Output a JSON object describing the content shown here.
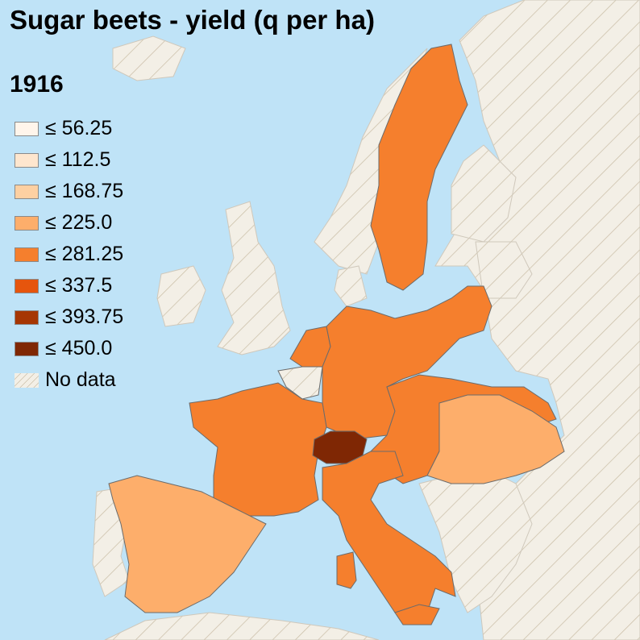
{
  "title": "Sugar beets - yield (q per ha)",
  "year": "1916",
  "colors": {
    "sea": "#bfe3f7",
    "nodata_base": "#f3efe6",
    "nodata_hatch": "#cbbfa8",
    "border": "#6b6b6b"
  },
  "legend": [
    {
      "label": "≤ 56.25",
      "color": "#fff5eb"
    },
    {
      "label": "≤ 112.5",
      "color": "#fee6ce"
    },
    {
      "label": "≤ 168.75",
      "color": "#fdd0a2"
    },
    {
      "label": "≤ 225.0",
      "color": "#fdae6b"
    },
    {
      "label": "≤ 281.25",
      "color": "#f57f2d"
    },
    {
      "label": "≤ 337.5",
      "color": "#e6550d"
    },
    {
      "label": "≤ 393.75",
      "color": "#a63603"
    },
    {
      "label": "≤ 450.0",
      "color": "#7f2704"
    }
  ],
  "no_data_label": "No data",
  "regions": [
    {
      "name": "sweden",
      "class": 4
    },
    {
      "name": "germany",
      "class": 4
    },
    {
      "name": "netherlands",
      "class": 4
    },
    {
      "name": "belgium",
      "class": "nodata"
    },
    {
      "name": "france",
      "class": 4
    },
    {
      "name": "switzerland",
      "class": 7
    },
    {
      "name": "austria",
      "class": 4
    },
    {
      "name": "hungary",
      "class": 3
    },
    {
      "name": "italy",
      "class": 4
    },
    {
      "name": "spain",
      "class": 3
    }
  ]
}
